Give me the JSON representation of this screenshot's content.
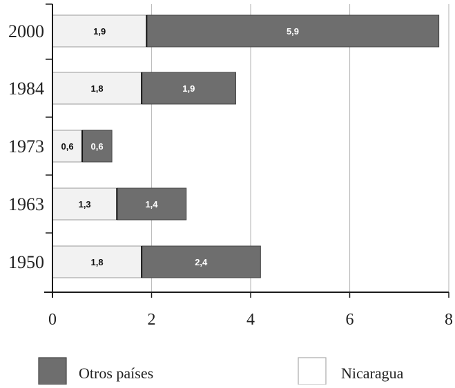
{
  "chart_data": {
    "type": "bar",
    "orientation": "horizontal",
    "stacked": true,
    "categories": [
      "2000",
      "1984",
      "1973",
      "1963",
      "1950"
    ],
    "series": [
      {
        "name": "Nicaragua",
        "values": [
          1.9,
          1.8,
          0.6,
          1.3,
          1.8
        ],
        "labels": [
          "1,9",
          "1,8",
          "0,6",
          "1,3",
          "1,8"
        ]
      },
      {
        "name": "Otros países",
        "values": [
          5.9,
          1.9,
          0.6,
          1.4,
          2.4
        ],
        "labels": [
          "5,9",
          "1,9",
          "0,6",
          "1,4",
          "2,4"
        ]
      }
    ],
    "xlim": [
      0,
      8
    ],
    "xticks": [
      "0",
      "2",
      "4",
      "6",
      "8"
    ],
    "grid": true,
    "legend_placement": "bottom",
    "legend": [
      {
        "name": "Otros países"
      },
      {
        "name": "Nicaragua"
      }
    ],
    "colors": {
      "Nicaragua": "#f2f2f2",
      "Otros países": "#6e6e6e",
      "grid": "#bdbdbd",
      "axis": "#1a1a1a"
    }
  }
}
